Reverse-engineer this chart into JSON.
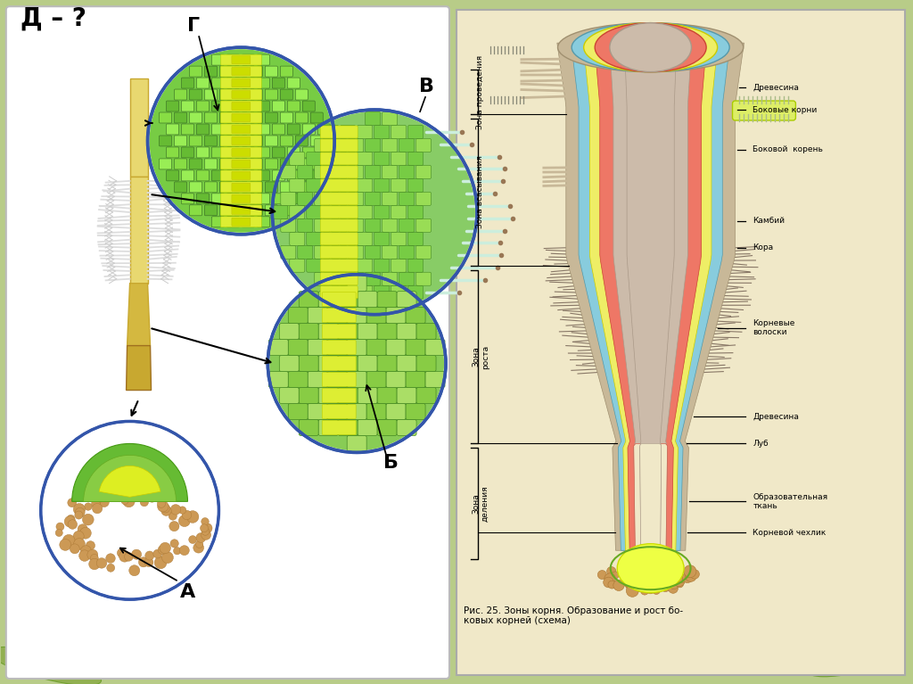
{
  "bg_color": "#b8cc88",
  "left_panel_bg": "#ffffff",
  "right_panel_bg": "#f0e8c8",
  "title_text": "Д – ?",
  "label_G": "Г",
  "label_V": "В",
  "label_B": "Б",
  "label_A": "А",
  "caption": "Рис. 25. Зоны корня. Образование и рост бо-\nковых корней (схема)",
  "zone_labels": [
    "Зона проведения",
    "Зона всасывания",
    "Зона\nроста",
    "Зона\nделения"
  ],
  "anatomy_labels": [
    "Боковые корни",
    "Древесина",
    "Боковой  корень",
    "Камбий",
    "Кора",
    "Корневые\nволоски",
    "Древесина",
    "Луб",
    "Образовательная\nткань",
    "Корневой чехлик"
  ]
}
